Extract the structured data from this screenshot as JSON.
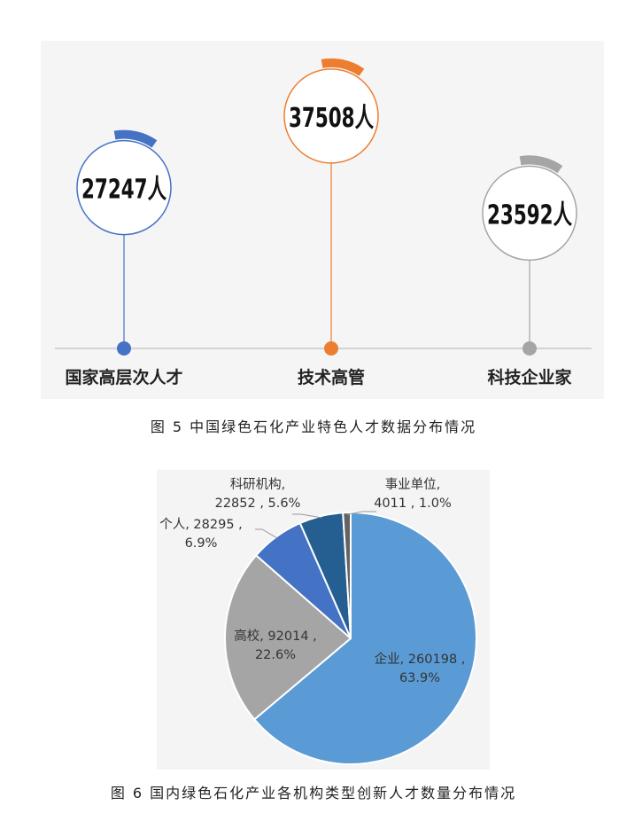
{
  "figure5": {
    "caption": "图 5 中国绿色石化产业特色人才数据分布情况",
    "chart_data": {
      "type": "bar",
      "categories": [
        "国家高层次人才",
        "技术高管",
        "科技企业家"
      ],
      "values": [
        27247,
        37508,
        23592
      ],
      "value_labels": [
        "27247人",
        "37508人",
        "23592人"
      ],
      "colors": [
        "#4472c4",
        "#ed7d31",
        "#a5a5a5"
      ]
    }
  },
  "figure6": {
    "caption": "图 6 国内绿色石化产业各机构类型创新人才数量分布情况",
    "chart_data": {
      "type": "pie",
      "slices": [
        {
          "name": "企业",
          "value": 260198,
          "percent": "63.9%",
          "color": "#5b9bd5",
          "label_lines": [
            "企业, 260198 ,",
            "63.9%"
          ]
        },
        {
          "name": "高校",
          "value": 92014,
          "percent": "22.6%",
          "color": "#a5a5a5",
          "label_lines": [
            "高校, 92014 ,",
            "22.6%"
          ]
        },
        {
          "name": "个人",
          "value": 28295,
          "percent": "6.9%",
          "color": "#4472c4",
          "label_lines": [
            "个人, 28295 ,",
            "6.9%"
          ]
        },
        {
          "name": "科研机构",
          "value": 22852,
          "percent": "5.6%",
          "color": "#255e91",
          "label_lines": [
            "科研机构,",
            "22852 , 5.6%"
          ]
        },
        {
          "name": "事业单位",
          "value": 4011,
          "percent": "1.0%",
          "color": "#636363",
          "label_lines": [
            "事业单位,",
            "4011 , 1.0%"
          ]
        }
      ]
    }
  }
}
